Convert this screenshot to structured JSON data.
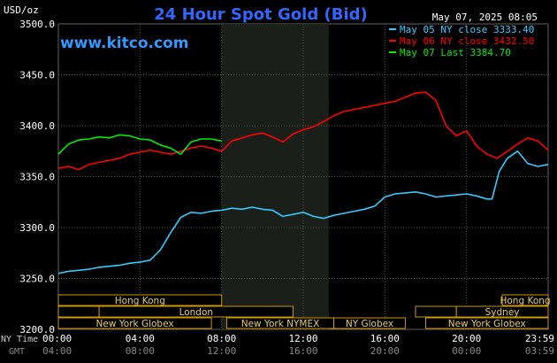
{
  "header": {
    "units": "USD/oz",
    "title": "24 Hour Spot Gold (Bid)",
    "datetime": "May 07, 2025 08:05",
    "website": "www.kitco.com"
  },
  "legend": [
    {
      "label": "May 05 NY close 3333.40",
      "color": "#33ccff"
    },
    {
      "label": "May 06 NY close 3432.50",
      "color": "#ff0000"
    },
    {
      "label": "May 07 Last 3384.70",
      "color": "#00ee00"
    }
  ],
  "axis_labels": {
    "ny_time": "NY Time",
    "gmt": "GMT"
  },
  "sessions": {
    "row1": [
      {
        "label": "Hong Kong",
        "start": 0,
        "end": 8
      },
      {
        "label": "Hong Kong",
        "start": 21.75,
        "end": 24
      }
    ],
    "row2": [
      {
        "label": "",
        "start": 0,
        "end": 2
      },
      {
        "label": "London",
        "start": 2,
        "end": 11.5
      },
      {
        "label": "",
        "start": 17.5,
        "end": 19.5
      },
      {
        "label": "Sydney",
        "start": 19.5,
        "end": 24
      }
    ],
    "row3": [
      {
        "label": "New York Globex",
        "start": 0,
        "end": 7.5
      },
      {
        "label": "New York NYMEX",
        "start": 8.25,
        "end": 13.5
      },
      {
        "label": "NY Globex",
        "start": 13.5,
        "end": 17
      },
      {
        "label": "New York Globex",
        "start": 18,
        "end": 24
      }
    ]
  },
  "chart_data": {
    "type": "line",
    "title": "24 Hour Spot Gold (Bid)",
    "ylabel": "USD/oz",
    "ylim": [
      3200,
      3500
    ],
    "xlim": [
      0,
      24
    ],
    "grid": true,
    "legend_position": "top-right",
    "y_ticks": [
      "3200.0",
      "3250.0",
      "3300.0",
      "3350.0",
      "3400.0",
      "3450.0",
      "3500.0"
    ],
    "x_ticks_ny": [
      "00:00",
      "04:00",
      "08:00",
      "12:00",
      "16:00",
      "20:00",
      "23:59"
    ],
    "x_ticks_gmt": [
      "04:00",
      "08:00",
      "12:00",
      "16:00",
      "20:00",
      "00:00",
      "03:59"
    ],
    "shaded_region": {
      "start": 8,
      "end": 13.25
    },
    "series": [
      {
        "name": "May 05 NY close 3333.40",
        "color": "#33ccff",
        "points": [
          [
            0,
            3255
          ],
          [
            0.5,
            3257
          ],
          [
            1,
            3258
          ],
          [
            1.5,
            3259
          ],
          [
            2,
            3261
          ],
          [
            2.5,
            3262
          ],
          [
            3,
            3263
          ],
          [
            3.5,
            3265
          ],
          [
            4,
            3266
          ],
          [
            4.5,
            3268
          ],
          [
            5,
            3278
          ],
          [
            5.5,
            3295
          ],
          [
            6,
            3310
          ],
          [
            6.5,
            3315
          ],
          [
            7,
            3314
          ],
          [
            7.5,
            3316
          ],
          [
            8,
            3317
          ],
          [
            8.5,
            3319
          ],
          [
            9,
            3318
          ],
          [
            9.5,
            3320
          ],
          [
            10,
            3318
          ],
          [
            10.5,
            3317
          ],
          [
            11,
            3311
          ],
          [
            11.5,
            3313
          ],
          [
            12,
            3315
          ],
          [
            12.5,
            3311
          ],
          [
            13,
            3309
          ],
          [
            13.5,
            3312
          ],
          [
            14,
            3314
          ],
          [
            14.5,
            3316
          ],
          [
            15,
            3318
          ],
          [
            15.5,
            3321
          ],
          [
            16,
            3330
          ],
          [
            16.5,
            3333
          ],
          [
            17,
            3334
          ],
          [
            17.5,
            3335
          ],
          [
            18,
            3333
          ],
          [
            18.5,
            3330
          ],
          [
            19,
            3331
          ],
          [
            19.5,
            3332
          ],
          [
            20,
            3333
          ],
          [
            20.5,
            3331
          ],
          [
            21,
            3328
          ],
          [
            21.25,
            3328
          ],
          [
            21.6,
            3355
          ],
          [
            22,
            3368
          ],
          [
            22.5,
            3375
          ],
          [
            23,
            3363
          ],
          [
            23.5,
            3360
          ],
          [
            24,
            3362
          ]
        ]
      },
      {
        "name": "May 06 NY close 3432.50",
        "color": "#ff0000",
        "points": [
          [
            0,
            3358
          ],
          [
            0.5,
            3360
          ],
          [
            1,
            3357
          ],
          [
            1.5,
            3362
          ],
          [
            2,
            3364
          ],
          [
            2.5,
            3366
          ],
          [
            3,
            3368
          ],
          [
            3.5,
            3372
          ],
          [
            4,
            3374
          ],
          [
            4.5,
            3376
          ],
          [
            5,
            3374
          ],
          [
            5.5,
            3372
          ],
          [
            6,
            3375
          ],
          [
            6.5,
            3378
          ],
          [
            7,
            3380
          ],
          [
            7.5,
            3378
          ],
          [
            8,
            3375
          ],
          [
            8.5,
            3385
          ],
          [
            9,
            3388
          ],
          [
            9.5,
            3391
          ],
          [
            10,
            3393
          ],
          [
            10.5,
            3389
          ],
          [
            11,
            3384
          ],
          [
            11.5,
            3392
          ],
          [
            12,
            3396
          ],
          [
            12.5,
            3399
          ],
          [
            13,
            3404
          ],
          [
            13.5,
            3410
          ],
          [
            14,
            3414
          ],
          [
            14.5,
            3416
          ],
          [
            15,
            3418
          ],
          [
            15.5,
            3420
          ],
          [
            16,
            3422
          ],
          [
            16.5,
            3424
          ],
          [
            17,
            3428
          ],
          [
            17.5,
            3432
          ],
          [
            18,
            3433
          ],
          [
            18.5,
            3425
          ],
          [
            19,
            3400
          ],
          [
            19.5,
            3390
          ],
          [
            20,
            3395
          ],
          [
            20.5,
            3380
          ],
          [
            21,
            3372
          ],
          [
            21.5,
            3368
          ],
          [
            22,
            3375
          ],
          [
            22.5,
            3382
          ],
          [
            23,
            3388
          ],
          [
            23.5,
            3385
          ],
          [
            24,
            3376
          ]
        ]
      },
      {
        "name": "May 07 Last 3384.70",
        "color": "#00ee00",
        "points": [
          [
            0,
            3372
          ],
          [
            0.5,
            3382
          ],
          [
            1,
            3386
          ],
          [
            1.5,
            3387
          ],
          [
            2,
            3389
          ],
          [
            2.5,
            3388
          ],
          [
            3,
            3391
          ],
          [
            3.5,
            3390
          ],
          [
            4,
            3387
          ],
          [
            4.5,
            3386
          ],
          [
            5,
            3381
          ],
          [
            5.5,
            3378
          ],
          [
            6,
            3372
          ],
          [
            6.5,
            3384
          ],
          [
            7,
            3387
          ],
          [
            7.5,
            3387
          ],
          [
            8,
            3385
          ]
        ]
      }
    ]
  }
}
